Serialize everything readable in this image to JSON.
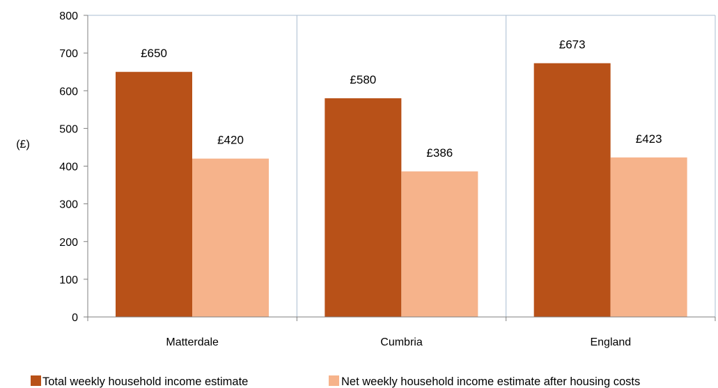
{
  "chart_data": {
    "type": "bar",
    "categories": [
      "Matterdale",
      "Cumbria",
      "England"
    ],
    "series": [
      {
        "name": "Total weekly household income estimate",
        "values": [
          650,
          580,
          673
        ],
        "labels": [
          "£650",
          "£580",
          "£673"
        ],
        "color": "#b85118"
      },
      {
        "name": "Net weekly household income estimate after housing costs",
        "values": [
          420,
          386,
          423
        ],
        "labels": [
          "£420",
          "£386",
          "£423"
        ],
        "color": "#f6b38b"
      }
    ],
    "ylabel": "(£)",
    "ylim": [
      0,
      800
    ],
    "yticks": [
      0,
      100,
      200,
      300,
      400,
      500,
      600,
      700,
      800
    ],
    "grid": "vertical category separators",
    "legend": "bottom"
  }
}
